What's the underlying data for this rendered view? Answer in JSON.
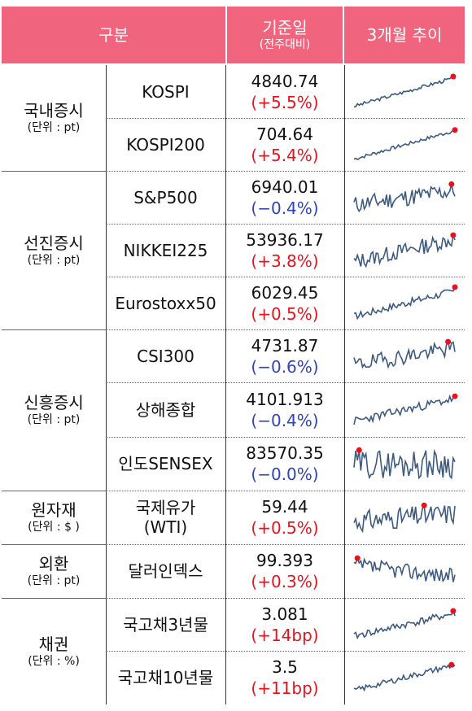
{
  "header": {
    "group": "구분",
    "base_date": "기준일",
    "base_sub": "(전주대비)",
    "trend": "3개월 추이"
  },
  "categories": [
    {
      "name": "국내증시",
      "unit": "(단위 : pt)"
    },
    {
      "name": "선진증시",
      "unit": "(단위 : pt)"
    },
    {
      "name": "신흥증시",
      "unit": "(단위 : pt)"
    },
    {
      "name": "원자재",
      "unit": "(단위 : $ )"
    },
    {
      "name": "외환",
      "unit": "(단위 : pt)"
    },
    {
      "name": "채권",
      "unit": "(단위 : %)"
    }
  ],
  "rows": [
    {
      "name": "KOSPI",
      "value": "4840.74",
      "change": "(+5.5%)",
      "change_color": "#e8121c"
    },
    {
      "name": "KOSPI200",
      "value": "704.64",
      "change": "(+5.4%)",
      "change_color": "#e8121c"
    },
    {
      "name": "S&P500",
      "value": "6940.01",
      "change": "(−0.4%)",
      "change_color": "#2e44b8"
    },
    {
      "name": "NIKKEI225",
      "value": "53936.17",
      "change": "(+3.8%)",
      "change_color": "#e8121c"
    },
    {
      "name": "Eurostoxx50",
      "value": "6029.45",
      "change": "(+0.5%)",
      "change_color": "#e8121c"
    },
    {
      "name": "CSI300",
      "value": "4731.87",
      "change": "(−0.6%)",
      "change_color": "#2e44b8"
    },
    {
      "name": "상해종합",
      "value": "4101.913",
      "change": "(−0.4%)",
      "change_color": "#2e44b8"
    },
    {
      "name": "인도SENSEX",
      "value": "83570.35",
      "change": "(−0.0%)",
      "change_color": "#2e44b8"
    },
    {
      "name": "국제유가\n(WTI)",
      "value": "59.44",
      "change": "(+0.5%)",
      "change_color": "#e8121c"
    },
    {
      "name": "달러인덱스",
      "value": "99.393",
      "change": "(+0.3%)",
      "change_color": "#e8121c"
    },
    {
      "name": "국고채3년물",
      "value": "3.081",
      "change": "(+14bp)",
      "change_color": "#e8121c"
    },
    {
      "name": "국고채10년물",
      "value": "3.5",
      "change": "(+11bp)",
      "change_color": "#e8121c"
    }
  ],
  "colors": {
    "header_bg": "#f1647e",
    "line": "#3d5a80",
    "marker": "#e8121c"
  }
}
